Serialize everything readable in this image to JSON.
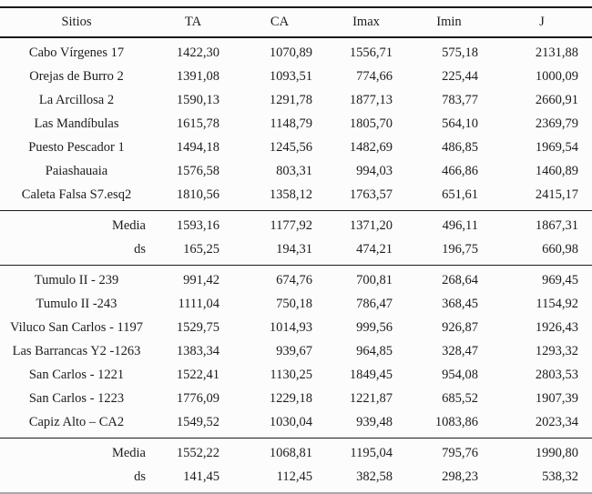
{
  "table": {
    "columns": [
      "Sitios",
      "TA",
      "CA",
      "Imax",
      "Imin",
      "J"
    ],
    "group1": {
      "rows": [
        {
          "site": "Cabo Vírgenes 17",
          "ta": "1422,30",
          "ca": "1070,89",
          "imax": "1556,71",
          "imin": "575,18",
          "j": "2131,88"
        },
        {
          "site": "Orejas de Burro 2",
          "ta": "1391,08",
          "ca": "1093,51",
          "imax": "774,66",
          "imin": "225,44",
          "j": "1000,09"
        },
        {
          "site": "La Arcillosa 2",
          "ta": "1590,13",
          "ca": "1291,78",
          "imax": "1877,13",
          "imin": "783,77",
          "j": "2660,91"
        },
        {
          "site": "Las Mandíbulas",
          "ta": "1615,78",
          "ca": "1148,79",
          "imax": "1805,70",
          "imin": "564,10",
          "j": "2369,79"
        },
        {
          "site": "Puesto Pescador 1",
          "ta": "1494,18",
          "ca": "1245,56",
          "imax": "1482,69",
          "imin": "486,85",
          "j": "1969,54"
        },
        {
          "site": "Paiashauaia",
          "ta": "1576,58",
          "ca": "803,31",
          "imax": "994,03",
          "imin": "466,86",
          "j": "1460,89"
        },
        {
          "site": "Caleta Falsa S7.esq2",
          "ta": "1810,56",
          "ca": "1358,12",
          "imax": "1763,57",
          "imin": "651,61",
          "j": "2415,17"
        }
      ],
      "summary": [
        {
          "site": "Media",
          "ta": "1593,16",
          "ca": "1177,92",
          "imax": "1371,20",
          "imin": "496,11",
          "j": "1867,31"
        },
        {
          "site": "ds",
          "ta": "165,25",
          "ca": "194,31",
          "imax": "474,21",
          "imin": "196,75",
          "j": "660,98"
        }
      ]
    },
    "group2": {
      "rows": [
        {
          "site": "Tumulo II - 239",
          "ta": "991,42",
          "ca": "674,76",
          "imax": "700,81",
          "imin": "268,64",
          "j": "969,45"
        },
        {
          "site": "Tumulo II -243",
          "ta": "1111,04",
          "ca": "750,18",
          "imax": "786,47",
          "imin": "368,45",
          "j": "1154,92"
        },
        {
          "site": "Viluco San Carlos - 1197",
          "ta": "1529,75",
          "ca": "1014,93",
          "imax": "999,56",
          "imin": "926,87",
          "j": "1926,43"
        },
        {
          "site": "Las Barrancas Y2 -1263",
          "ta": "1383,34",
          "ca": "939,67",
          "imax": "964,85",
          "imin": "328,47",
          "j": "1293,32"
        },
        {
          "site": "San Carlos - 1221",
          "ta": "1522,41",
          "ca": "1130,25",
          "imax": "1849,45",
          "imin": "954,08",
          "j": "2803,53"
        },
        {
          "site": "San Carlos - 1223",
          "ta": "1776,09",
          "ca": "1229,18",
          "imax": "1221,87",
          "imin": "685,52",
          "j": "1907,39"
        },
        {
          "site": "Capiz Alto – CA2",
          "ta": "1549,52",
          "ca": "1030,04",
          "imax": "939,48",
          "imin": "1083,86",
          "j": "2023,34"
        }
      ],
      "summary": [
        {
          "site": "Media",
          "ta": "1552,22",
          "ca": "1068,81",
          "imax": "1195,04",
          "imin": "795,76",
          "j": "1990,80"
        },
        {
          "site": "ds",
          "ta": "141,45",
          "ca": "112,45",
          "imax": "382,58",
          "imin": "298,23",
          "j": "538,32"
        }
      ]
    }
  }
}
